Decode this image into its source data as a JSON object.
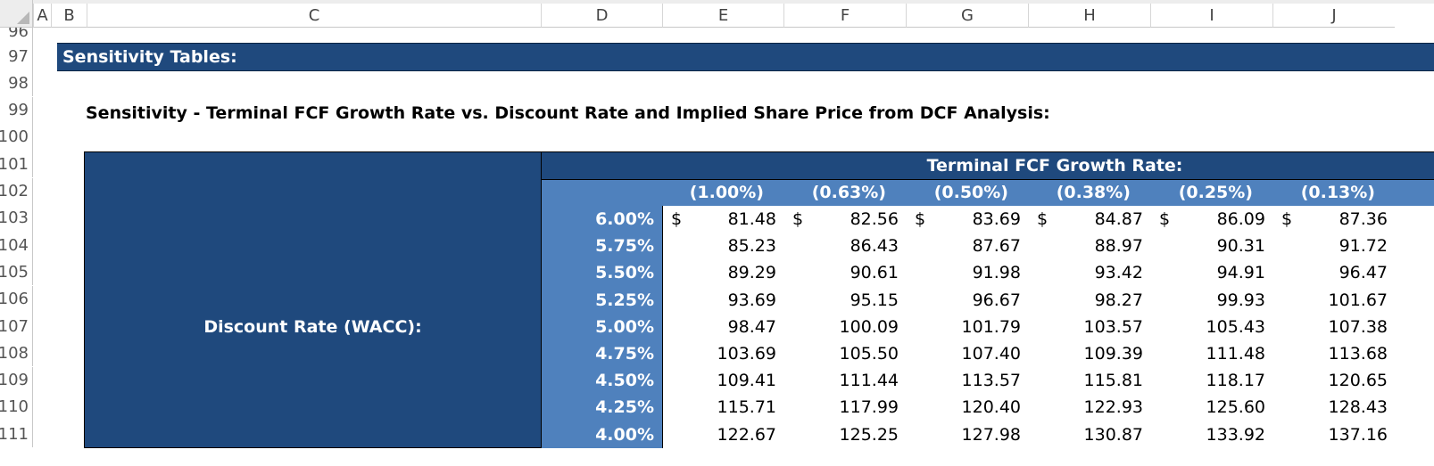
{
  "columns": [
    "A",
    "B",
    "C",
    "D",
    "E",
    "F",
    "G",
    "H",
    "I",
    "J"
  ],
  "rows": [
    "96",
    "97",
    "98",
    "99",
    "100",
    "101",
    "102",
    "103",
    "104",
    "105",
    "106",
    "107",
    "108",
    "109",
    "110",
    "111"
  ],
  "banner": "Sensitivity Tables:",
  "table_title": "Sensitivity - Terminal FCF Growth Rate vs. Discount Rate and Implied Share Price from DCF Analysis:",
  "growth_header": "Terminal FCF Growth Rate:",
  "discount_label": "Discount Rate (WACC):",
  "growth_rates": [
    "(1.00%)",
    "(0.63%)",
    "(0.50%)",
    "(0.38%)",
    "(0.25%)",
    "(0.13%)"
  ],
  "discount_rates": [
    "6.00%",
    "5.75%",
    "5.50%",
    "5.25%",
    "5.00%",
    "4.75%",
    "4.50%",
    "4.25%",
    "4.00%"
  ],
  "currency_symbol": "$",
  "values": [
    [
      "81.48",
      "82.56",
      "83.69",
      "84.87",
      "86.09",
      "87.36"
    ],
    [
      "85.23",
      "86.43",
      "87.67",
      "88.97",
      "90.31",
      "91.72"
    ],
    [
      "89.29",
      "90.61",
      "91.98",
      "93.42",
      "94.91",
      "96.47"
    ],
    [
      "93.69",
      "95.15",
      "96.67",
      "98.27",
      "99.93",
      "101.67"
    ],
    [
      "98.47",
      "100.09",
      "101.79",
      "103.57",
      "105.43",
      "107.38"
    ],
    [
      "103.69",
      "105.50",
      "107.40",
      "109.39",
      "111.48",
      "113.68"
    ],
    [
      "109.41",
      "111.44",
      "113.57",
      "115.81",
      "118.17",
      "120.65"
    ],
    [
      "115.71",
      "117.99",
      "120.40",
      "122.93",
      "125.60",
      "128.43"
    ],
    [
      "122.67",
      "125.25",
      "127.98",
      "130.87",
      "133.92",
      "137.16"
    ]
  ],
  "colors": {
    "dark_blue": "#1f497d",
    "mid_blue": "#4f81bd",
    "header_bg": "#ededed"
  }
}
